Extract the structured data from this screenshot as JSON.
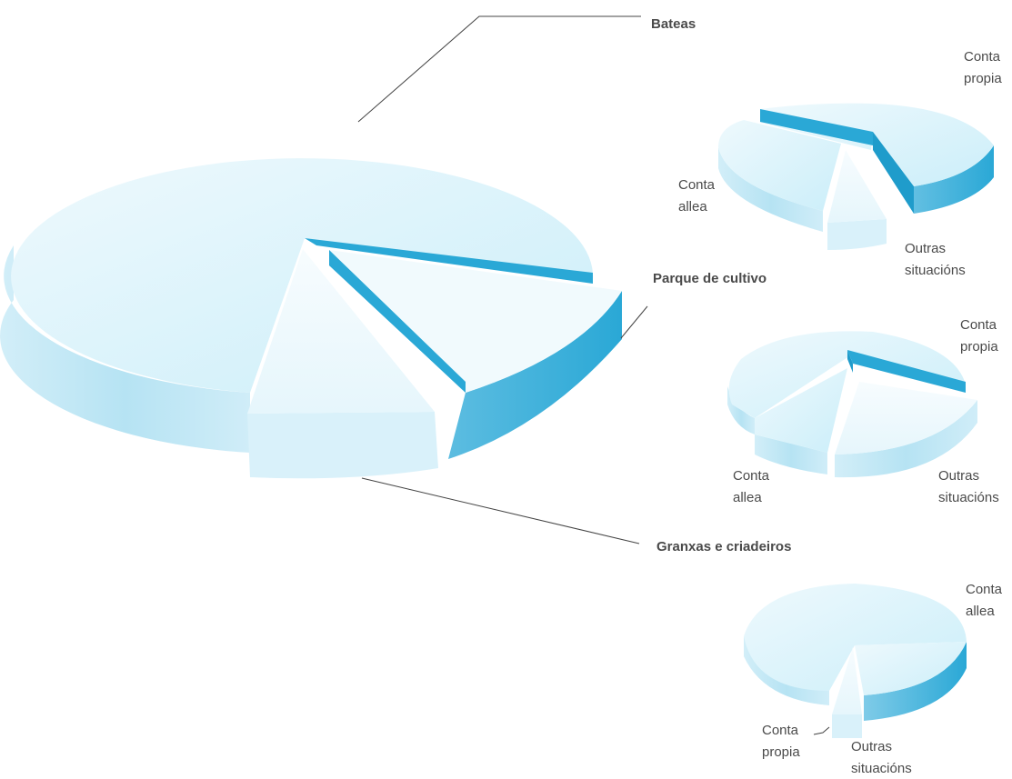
{
  "colors": {
    "top_light": "#e8f6fc",
    "top_mid": "#c9ecf8",
    "side_light": "#c4e8f5",
    "side_mid": "#a9dcef",
    "accent": "#2aa8d6",
    "accent_side": "#1f9ccb",
    "wedge_top": "#f4fbfe",
    "wedge_side": "#d7f0f9",
    "label": "#4a4a4a"
  },
  "chart_data": [
    {
      "type": "pie",
      "style": "3d-exploded",
      "slices": [
        {
          "label": "Bateas",
          "value": 70.5,
          "highlight": false
        },
        {
          "label": "Parque de cultivo",
          "value": 14.0,
          "highlight": true
        },
        {
          "label": "Granxas e criadeiros",
          "value": 15.5,
          "highlight": false
        }
      ],
      "labels": {
        "bateas": "Bateas",
        "parque": "Parque de cultivo",
        "granxas": "Granxas e criadeiros"
      }
    },
    {
      "type": "pie",
      "style": "3d-exploded",
      "slices": [
        {
          "label": "Conta propia",
          "value": 56,
          "highlight": true
        },
        {
          "label": "Outras situacións",
          "value": 8,
          "highlight": false
        },
        {
          "label": "Conta allea",
          "value": 36,
          "highlight": false
        }
      ],
      "labels": {
        "a1": "Conta",
        "a2": "propia",
        "b1": "Conta",
        "b2": "allea",
        "c1": "Outras",
        "c2": "situacións"
      }
    },
    {
      "type": "pie",
      "style": "3d-exploded",
      "slices": [
        {
          "label": "Conta propia",
          "value": 2,
          "highlight": true
        },
        {
          "label": "Outras situacións",
          "value": 25,
          "highlight": false
        },
        {
          "label": "Conta allea",
          "value": 73,
          "highlight": false
        }
      ],
      "labels": {
        "a1": "Conta",
        "a2": "propia",
        "b1": "Conta",
        "b2": "allea",
        "c1": "Outras",
        "c2": "situacións"
      }
    },
    {
      "type": "pie",
      "style": "3d-exploded",
      "slices": [
        {
          "label": "Conta allea",
          "value": 96,
          "highlight": true
        },
        {
          "label": "Outras situacións",
          "value": 3,
          "highlight": false
        },
        {
          "label": "Conta propia",
          "value": 1,
          "highlight": false
        }
      ],
      "labels": {
        "a1": "Conta",
        "a2": "allea",
        "b1": "Conta",
        "b2": "propia",
        "c1": "Outras",
        "c2": "situacións"
      }
    }
  ]
}
